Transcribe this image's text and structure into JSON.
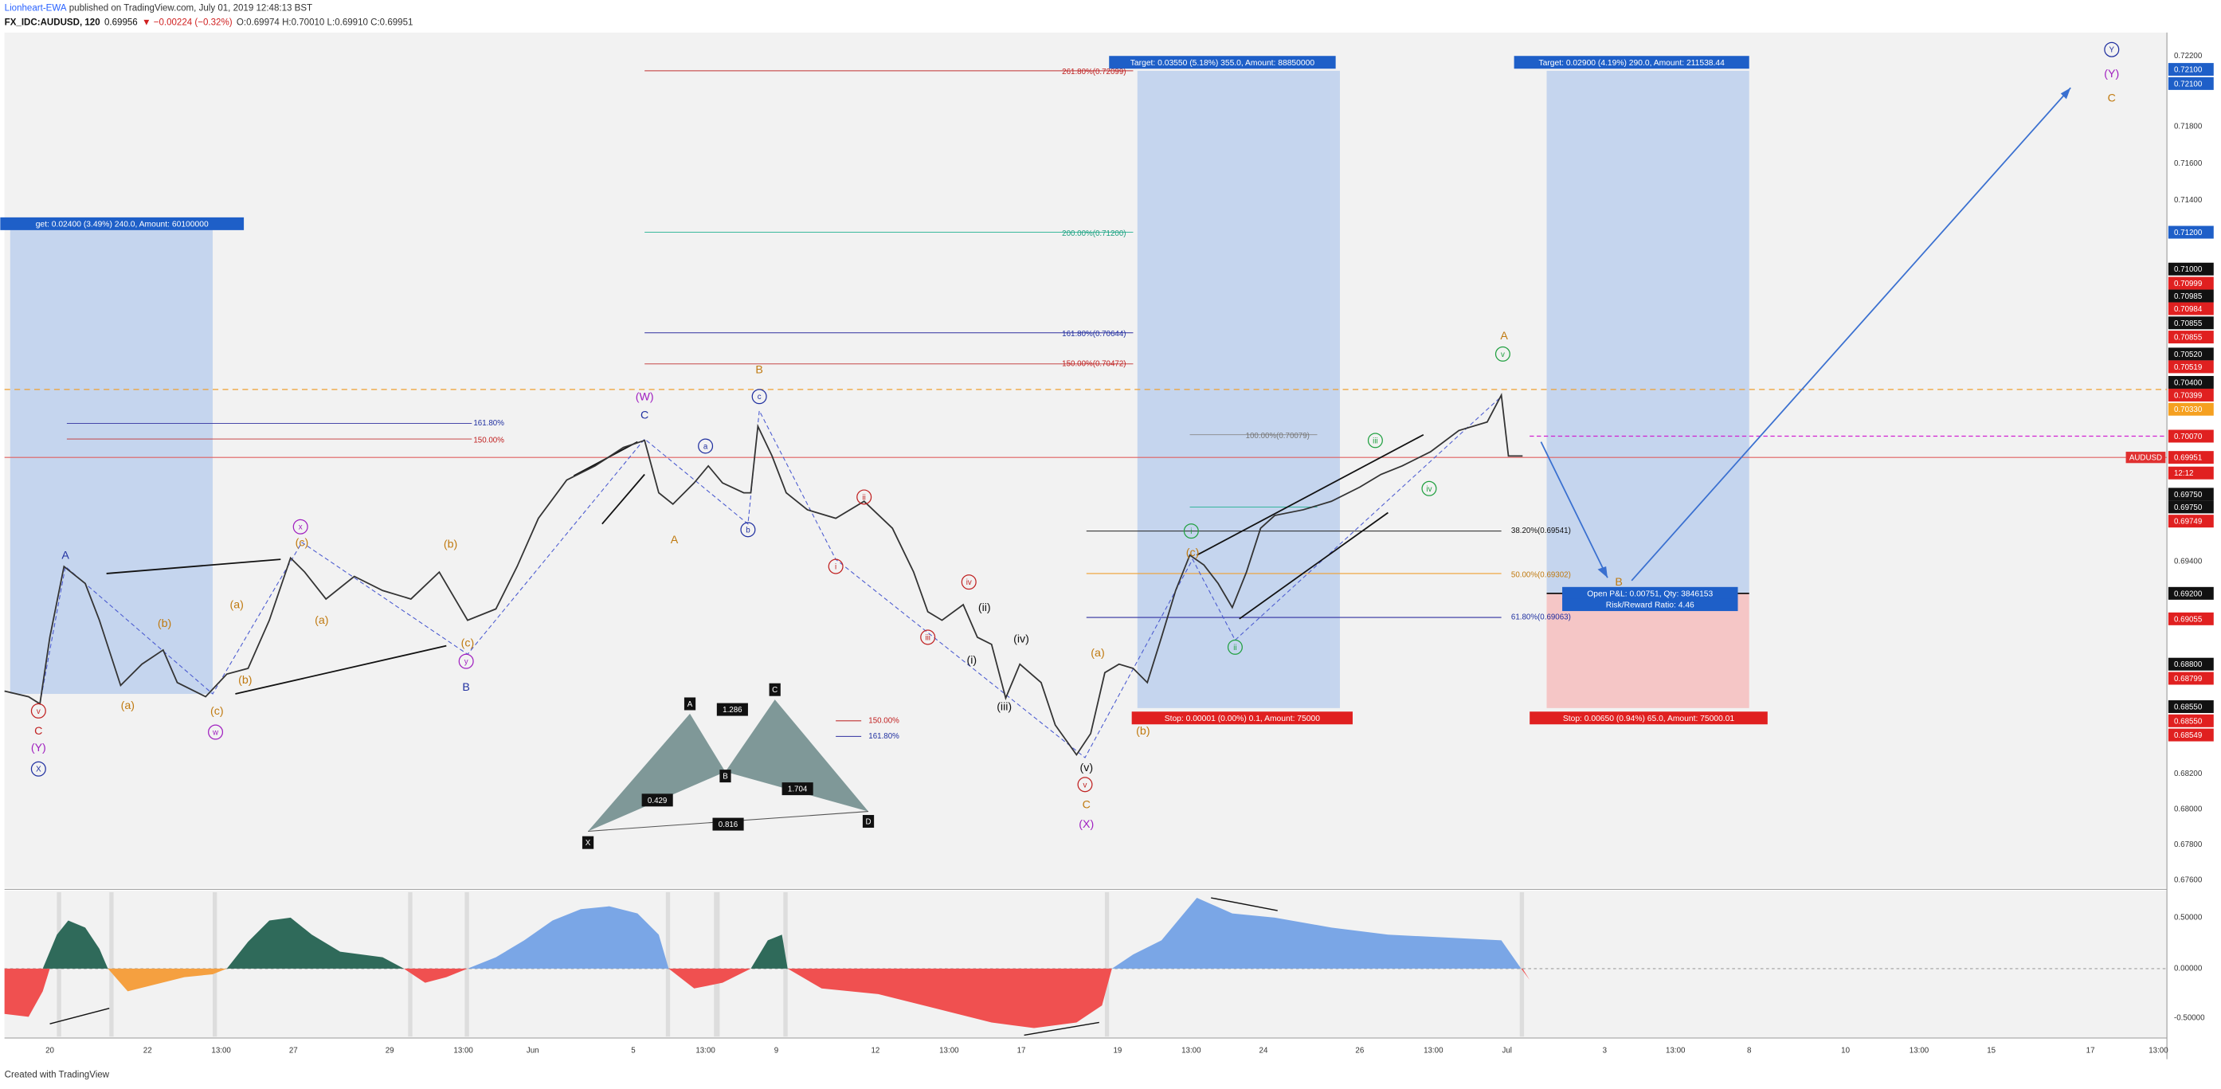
{
  "header": {
    "author": "Lionheart-EWA",
    "published": " published on TradingView.com, July 01, 2019 12:48:13 BST",
    "symbol": "FX_IDC:AUDUSD, 120",
    "price": "0.69956",
    "change": "▼ −0.00224 (−0.32%)",
    "ohlc": "O:0.69974 H:0.70010 L:0.69910 C:0.69951"
  },
  "price_axis": [
    "0.72200",
    "0.72100",
    "0.72100",
    "0.71800",
    "0.71600",
    "0.71400",
    "0.71200",
    "0.71000",
    "0.70999",
    "0.70985",
    "0.70984",
    "0.70855",
    "0.70855",
    "0.70520",
    "0.70519",
    "0.70400",
    "0.70399",
    "0.70330",
    "0.70070",
    "0.69951",
    "12:12",
    "0.69750",
    "0.69750",
    "0.69749",
    "0.69400",
    "0.69200",
    "0.69055",
    "0.68800",
    "0.68799",
    "0.68550",
    "0.68550",
    "0.68549",
    "0.68200",
    "0.68000",
    "0.67800",
    "0.67600"
  ],
  "symbol_tag": "AUDUSD",
  "oscillator_axis": [
    "0.50000",
    "0.00000",
    "-0.50000"
  ],
  "time_axis": [
    "20",
    "22",
    "13:00",
    "27",
    "29",
    "13:00",
    "Jun",
    "5",
    "13:00",
    "9",
    "12",
    "13:00",
    "17",
    "19",
    "13:00",
    "24",
    "26",
    "13:00",
    "Jul",
    "3",
    "13:00",
    "8",
    "10",
    "13:00",
    "15",
    "17",
    "13:00"
  ],
  "wave_labels": [
    "A",
    "v",
    "C",
    "(Y)",
    "X",
    "(a)",
    "(b)",
    "(c)",
    "w",
    "(a)",
    "(b)",
    "(c)",
    "x",
    "(a)",
    "(b)",
    "(c)",
    "y",
    "B",
    "(W)",
    "C",
    "A",
    "a",
    "b",
    "B",
    "c",
    "ii",
    "i",
    "iv",
    "iii",
    "(ii)",
    "(i)",
    "(iv)",
    "(iii)",
    "(v)",
    "v",
    "C",
    "(X)",
    "(a)",
    "(b)",
    "(c)",
    "i",
    "ii",
    "iii",
    "iv",
    "A",
    "v",
    "B",
    "Y",
    "(Y)",
    "C"
  ],
  "fib_labels": [
    "261.80%(0.72099)",
    "200.00%(0.71200)",
    "161.80%(0.70644)",
    "150.00%(0.70472)",
    "161.80%",
    "150.00%",
    "100.00%(0.70079)",
    "38.20%(0.69541)",
    "50.00%(0.69302)",
    "61.80%(0.69063)",
    "150.00%",
    "161.80%"
  ],
  "trade_boxes": [
    "Target: 0.03550 (5.18%) 355.0, Amount: 88850000",
    "Target: 0.02900 (4.19%) 290.0, Amount: 211538.44",
    "get: 0.02400 (3.49%) 240.0, Amount: 60100000",
    "Stop: 0.00001 (0.00%) 0.1, Amount: 75000",
    "Stop: 0.00650 (0.94%) 65.0, Amount: 75000.01",
    "Open P&L: 0.00751, Qty: 3846153",
    "Risk/Reward Ratio: 4.46"
  ],
  "harmonic": {
    "points": [
      "A",
      "C",
      "B",
      "X",
      "D"
    ],
    "ratios": [
      "1.286",
      "0.429",
      "1.704",
      "0.816"
    ]
  },
  "footer": "Created with TradingView"
}
